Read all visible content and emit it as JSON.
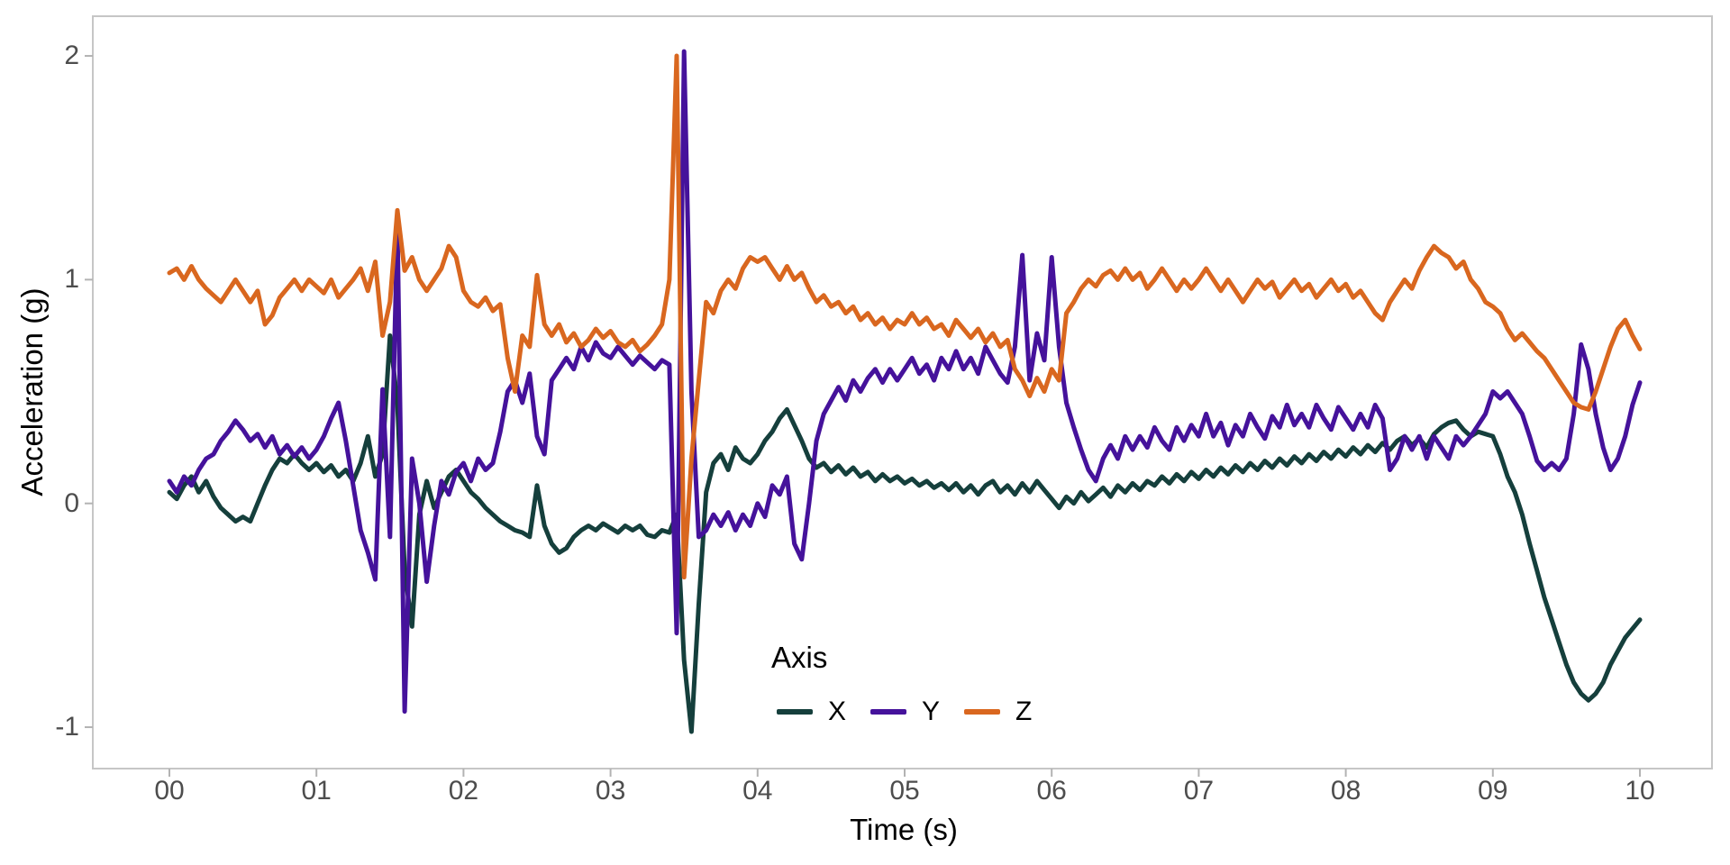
{
  "figure": {
    "background": "#ffffff"
  },
  "chart_data": {
    "type": "line",
    "title": "",
    "xlabel": "Time (s)",
    "ylabel": "Acceleration (g)",
    "legend_title": "Axis",
    "legend_position": "inside-bottom-center",
    "grid": false,
    "xlim": [
      0,
      10
    ],
    "ylim": [
      -1.19,
      2.18
    ],
    "x_ticks": [
      0,
      1,
      2,
      3,
      4,
      5,
      6,
      7,
      8,
      9,
      10
    ],
    "x_tick_labels": [
      "00",
      "01",
      "02",
      "03",
      "04",
      "05",
      "06",
      "07",
      "08",
      "09",
      "10"
    ],
    "y_ticks": [
      2,
      1,
      0,
      -1
    ],
    "y_tick_labels": [
      "2",
      "1",
      "0",
      "-1"
    ],
    "x_start": 0,
    "x_step": 0.05,
    "panel_border_color": "#c6c6c6",
    "tick_mark_color": "#b3b3b3",
    "tick_label_color": "#4d4d4d",
    "series": [
      {
        "name": "X",
        "color": "#153f3c",
        "values": [
          0.05,
          0.02,
          0.08,
          0.12,
          0.05,
          0.1,
          0.03,
          -0.02,
          -0.05,
          -0.08,
          -0.06,
          -0.08,
          0.0,
          0.08,
          0.15,
          0.2,
          0.18,
          0.22,
          0.18,
          0.15,
          0.18,
          0.14,
          0.17,
          0.12,
          0.15,
          0.1,
          0.18,
          0.3,
          0.12,
          0.22,
          0.75,
          0.45,
          -0.3,
          -0.55,
          -0.05,
          0.1,
          -0.02,
          0.05,
          0.12,
          0.15,
          0.1,
          0.05,
          0.02,
          -0.02,
          -0.05,
          -0.08,
          -0.1,
          -0.12,
          -0.13,
          -0.15,
          0.08,
          -0.1,
          -0.18,
          -0.22,
          -0.2,
          -0.15,
          -0.12,
          -0.1,
          -0.12,
          -0.09,
          -0.11,
          -0.13,
          -0.1,
          -0.12,
          -0.1,
          -0.14,
          -0.15,
          -0.12,
          -0.13,
          -0.05,
          -0.7,
          -1.02,
          -0.45,
          0.05,
          0.18,
          0.22,
          0.15,
          0.25,
          0.2,
          0.18,
          0.22,
          0.28,
          0.32,
          0.38,
          0.42,
          0.35,
          0.28,
          0.2,
          0.16,
          0.18,
          0.14,
          0.17,
          0.13,
          0.16,
          0.12,
          0.14,
          0.1,
          0.13,
          0.1,
          0.12,
          0.09,
          0.11,
          0.08,
          0.1,
          0.07,
          0.09,
          0.06,
          0.09,
          0.05,
          0.08,
          0.04,
          0.08,
          0.1,
          0.05,
          0.08,
          0.04,
          0.09,
          0.05,
          0.1,
          0.06,
          0.02,
          -0.02,
          0.03,
          0.0,
          0.05,
          0.01,
          0.04,
          0.07,
          0.03,
          0.08,
          0.05,
          0.09,
          0.06,
          0.1,
          0.08,
          0.12,
          0.09,
          0.13,
          0.1,
          0.14,
          0.11,
          0.15,
          0.12,
          0.16,
          0.13,
          0.17,
          0.14,
          0.18,
          0.15,
          0.19,
          0.16,
          0.2,
          0.17,
          0.21,
          0.18,
          0.22,
          0.19,
          0.23,
          0.2,
          0.24,
          0.21,
          0.25,
          0.22,
          0.26,
          0.23,
          0.27,
          0.24,
          0.28,
          0.3,
          0.26,
          0.29,
          0.25,
          0.31,
          0.34,
          0.36,
          0.37,
          0.33,
          0.3,
          0.32,
          0.31,
          0.3,
          0.22,
          0.12,
          0.05,
          -0.05,
          -0.18,
          -0.3,
          -0.42,
          -0.52,
          -0.62,
          -0.72,
          -0.8,
          -0.85,
          -0.88,
          -0.85,
          -0.8,
          -0.72,
          -0.66,
          -0.6,
          -0.56,
          -0.52
        ]
      },
      {
        "name": "Y",
        "color": "#45129b",
        "values": [
          0.1,
          0.05,
          0.12,
          0.08,
          0.15,
          0.2,
          0.22,
          0.28,
          0.32,
          0.37,
          0.33,
          0.28,
          0.31,
          0.25,
          0.3,
          0.22,
          0.26,
          0.21,
          0.25,
          0.2,
          0.24,
          0.3,
          0.38,
          0.45,
          0.28,
          0.08,
          -0.12,
          -0.22,
          -0.34,
          0.51,
          -0.15,
          1.25,
          -0.93,
          0.2,
          0.0,
          -0.35,
          -0.1,
          0.1,
          0.04,
          0.14,
          0.18,
          0.1,
          0.2,
          0.15,
          0.18,
          0.32,
          0.5,
          0.55,
          0.45,
          0.58,
          0.3,
          0.22,
          0.55,
          0.6,
          0.65,
          0.6,
          0.7,
          0.64,
          0.72,
          0.67,
          0.65,
          0.7,
          0.66,
          0.62,
          0.66,
          0.63,
          0.6,
          0.64,
          0.62,
          -0.58,
          2.02,
          0.5,
          -0.15,
          -0.12,
          -0.05,
          -0.1,
          -0.04,
          -0.12,
          -0.05,
          -0.1,
          0.0,
          -0.06,
          0.08,
          0.04,
          0.12,
          -0.18,
          -0.25,
          0.0,
          0.28,
          0.4,
          0.46,
          0.52,
          0.46,
          0.55,
          0.5,
          0.56,
          0.6,
          0.54,
          0.6,
          0.55,
          0.6,
          0.65,
          0.58,
          0.62,
          0.55,
          0.65,
          0.6,
          0.68,
          0.6,
          0.65,
          0.58,
          0.7,
          0.64,
          0.58,
          0.54,
          0.7,
          1.11,
          0.55,
          0.76,
          0.64,
          1.1,
          0.7,
          0.45,
          0.34,
          0.24,
          0.15,
          0.1,
          0.2,
          0.26,
          0.2,
          0.3,
          0.24,
          0.3,
          0.25,
          0.34,
          0.28,
          0.24,
          0.34,
          0.28,
          0.35,
          0.3,
          0.4,
          0.3,
          0.36,
          0.26,
          0.35,
          0.3,
          0.4,
          0.34,
          0.29,
          0.39,
          0.34,
          0.44,
          0.35,
          0.4,
          0.34,
          0.44,
          0.38,
          0.33,
          0.43,
          0.38,
          0.33,
          0.4,
          0.34,
          0.44,
          0.38,
          0.15,
          0.2,
          0.3,
          0.24,
          0.3,
          0.2,
          0.3,
          0.25,
          0.2,
          0.3,
          0.26,
          0.3,
          0.35,
          0.4,
          0.5,
          0.47,
          0.5,
          0.45,
          0.4,
          0.3,
          0.19,
          0.15,
          0.18,
          0.15,
          0.2,
          0.4,
          0.71,
          0.6,
          0.4,
          0.25,
          0.15,
          0.2,
          0.3,
          0.44,
          0.54
        ]
      },
      {
        "name": "Z",
        "color": "#d9671f",
        "values": [
          1.03,
          1.05,
          1.0,
          1.06,
          1.0,
          0.96,
          0.93,
          0.9,
          0.95,
          1.0,
          0.95,
          0.9,
          0.95,
          0.8,
          0.84,
          0.92,
          0.96,
          1.0,
          0.95,
          1.0,
          0.97,
          0.94,
          1.0,
          0.92,
          0.96,
          1.0,
          1.05,
          0.95,
          1.08,
          0.75,
          0.9,
          1.31,
          1.04,
          1.1,
          1.0,
          0.95,
          1.0,
          1.05,
          1.15,
          1.1,
          0.95,
          0.9,
          0.88,
          0.92,
          0.86,
          0.89,
          0.65,
          0.5,
          0.75,
          0.7,
          1.02,
          0.8,
          0.75,
          0.8,
          0.72,
          0.76,
          0.7,
          0.73,
          0.78,
          0.74,
          0.77,
          0.72,
          0.7,
          0.73,
          0.68,
          0.71,
          0.75,
          0.8,
          1.0,
          2.0,
          -0.33,
          0.2,
          0.55,
          0.9,
          0.85,
          0.95,
          1.0,
          0.96,
          1.05,
          1.1,
          1.08,
          1.1,
          1.05,
          1.0,
          1.06,
          1.0,
          1.03,
          0.96,
          0.9,
          0.93,
          0.88,
          0.9,
          0.85,
          0.88,
          0.82,
          0.85,
          0.8,
          0.83,
          0.78,
          0.82,
          0.8,
          0.85,
          0.8,
          0.83,
          0.78,
          0.8,
          0.75,
          0.82,
          0.78,
          0.74,
          0.78,
          0.72,
          0.76,
          0.7,
          0.73,
          0.6,
          0.55,
          0.48,
          0.56,
          0.5,
          0.6,
          0.55,
          0.85,
          0.9,
          0.96,
          1.0,
          0.97,
          1.02,
          1.04,
          1.0,
          1.05,
          1.0,
          1.03,
          0.96,
          1.0,
          1.05,
          1.0,
          0.95,
          1.0,
          0.96,
          1.0,
          1.05,
          1.0,
          0.95,
          1.0,
          0.95,
          0.9,
          0.95,
          1.0,
          0.96,
          0.99,
          0.92,
          0.96,
          1.0,
          0.95,
          0.98,
          0.92,
          0.96,
          1.0,
          0.95,
          0.98,
          0.92,
          0.95,
          0.9,
          0.85,
          0.82,
          0.9,
          0.95,
          1.0,
          0.96,
          1.04,
          1.1,
          1.15,
          1.12,
          1.1,
          1.05,
          1.08,
          1.0,
          0.96,
          0.9,
          0.88,
          0.85,
          0.78,
          0.73,
          0.76,
          0.72,
          0.68,
          0.65,
          0.6,
          0.55,
          0.5,
          0.45,
          0.43,
          0.42,
          0.5,
          0.6,
          0.7,
          0.78,
          0.82,
          0.75,
          0.69
        ]
      }
    ]
  }
}
